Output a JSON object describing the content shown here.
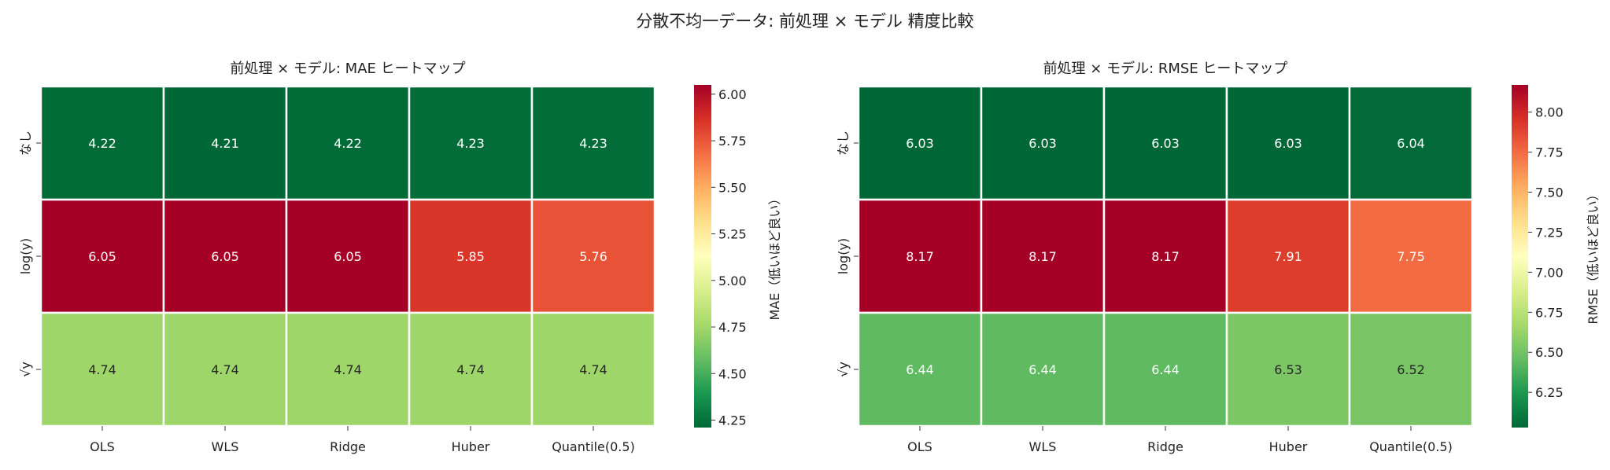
{
  "suptitle": "分散不均一データ: 前処理 × モデル 精度比較",
  "chart_data": [
    {
      "type": "heatmap",
      "title": "前処理 × モデル: MAE ヒートマップ",
      "colormap": "RdYlGn_r",
      "x_categories": [
        "OLS",
        "WLS",
        "Ridge",
        "Huber",
        "Quantile(0.5)"
      ],
      "y_categories": [
        "なし",
        "log(y)",
        "√y"
      ],
      "values": [
        [
          4.22,
          4.21,
          4.22,
          4.23,
          4.23
        ],
        [
          6.05,
          6.05,
          6.05,
          5.85,
          5.76
        ],
        [
          4.74,
          4.74,
          4.74,
          4.74,
          4.74
        ]
      ],
      "colorbar_label": "MAE（低いほど良い）",
      "colorbar_range": [
        4.21,
        6.05
      ],
      "colorbar_ticks": [
        "4.25",
        "4.50",
        "4.75",
        "5.00",
        "5.25",
        "5.50",
        "5.75",
        "6.00"
      ]
    },
    {
      "type": "heatmap",
      "title": "前処理 × モデル: RMSE ヒートマップ",
      "colormap": "RdYlGn_r",
      "x_categories": [
        "OLS",
        "WLS",
        "Ridge",
        "Huber",
        "Quantile(0.5)"
      ],
      "y_categories": [
        "なし",
        "log(y)",
        "√y"
      ],
      "values": [
        [
          6.03,
          6.03,
          6.03,
          6.03,
          6.04
        ],
        [
          8.17,
          8.17,
          8.17,
          7.91,
          7.75
        ],
        [
          6.44,
          6.44,
          6.44,
          6.53,
          6.52
        ]
      ],
      "colorbar_label": "RMSE（低いほど良い）",
      "colorbar_range": [
        6.03,
        8.17
      ],
      "colorbar_ticks": [
        "6.25",
        "6.50",
        "6.75",
        "7.00",
        "7.25",
        "7.50",
        "7.75",
        "8.00"
      ]
    }
  ]
}
